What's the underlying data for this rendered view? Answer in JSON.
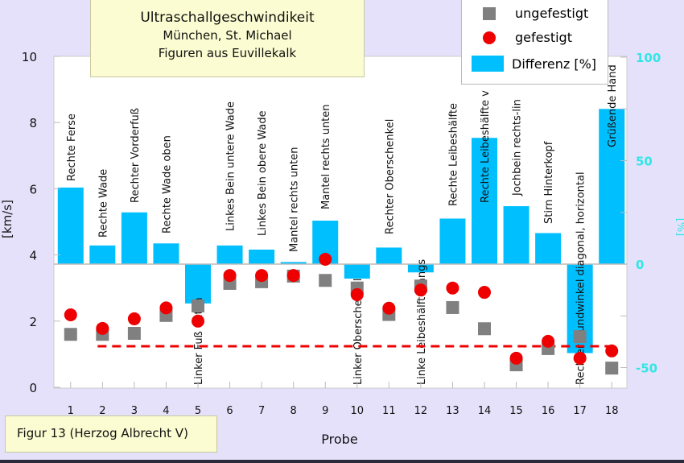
{
  "title_box": {
    "line1": "Ultraschallgeschwindikeit",
    "line2": "München, St. Michael",
    "line3": "Figuren aus Euvillekalk"
  },
  "figure_caption": "Figur 13 (Herzog Albrecht V)",
  "colors": {
    "ungefestigt": "#808080",
    "gefestigt": "#ee0000",
    "differenz": "#00bfff",
    "right_axis": "#33e5e5",
    "dashed_line": "#ee0000",
    "background": "#e6e1fa"
  },
  "chart_data": {
    "type": "bar",
    "xlabel": "Probe",
    "ylabel": "[km/s]",
    "y2label": "[%]",
    "ylim": [
      0,
      10
    ],
    "y2lim": [
      -60,
      100
    ],
    "yticks": [
      "0",
      "2",
      "4",
      "6",
      "8",
      "10"
    ],
    "y2ticks": [
      "-50",
      "0",
      "50",
      "100"
    ],
    "categories": [
      "1",
      "2",
      "3",
      "4",
      "5",
      "6",
      "7",
      "8",
      "9",
      "10",
      "11",
      "12",
      "13",
      "14",
      "15",
      "16",
      "17",
      "18"
    ],
    "bar_labels": [
      "Rechte Ferse",
      "Rechte Wade",
      "Rechter Vorderfuß",
      "Rechte Wade oben",
      "Linker Fuß unten",
      "Linkes Bein untere Wade",
      "Linkes Bein obere Wade",
      "Mantel rechts unten",
      "Mantel rechts unten",
      "Linker Oberschenkel",
      "Rechter Oberschenkel",
      "Linke Leibeshälfte längs",
      "Rechte Leibeshälfte",
      "Rechte Leibeshälfte v",
      "Jochbein rechts-lin",
      "Stirn Hinterkopf",
      "Rechter Mundwinkel diagonal, horizontal",
      "Grüßende Hand"
    ],
    "legend": {
      "position": "top-right",
      "entries": [
        "ungefestigt",
        "gefestigt",
        "Differenz [%]"
      ]
    },
    "series": [
      {
        "name": "ungefestigt",
        "type": "scatter",
        "axis": "left",
        "marker": "square",
        "values": [
          1.6,
          1.6,
          1.63,
          2.17,
          2.46,
          3.14,
          3.19,
          3.36,
          3.23,
          3.0,
          2.2,
          3.06,
          2.41,
          1.77,
          0.68,
          1.17,
          1.53,
          0.58
        ]
      },
      {
        "name": "gefestigt",
        "type": "scatter",
        "axis": "left",
        "marker": "circle",
        "values": [
          2.19,
          1.78,
          2.07,
          2.4,
          2.0,
          3.38,
          3.38,
          3.38,
          3.87,
          2.8,
          2.39,
          2.94,
          3.0,
          2.87,
          0.88,
          1.39,
          0.88,
          1.1
        ]
      },
      {
        "name": "Differenz [%]",
        "type": "bar",
        "axis": "right",
        "values": [
          37,
          9,
          25,
          10,
          -19,
          9,
          7,
          1,
          21,
          -7,
          8,
          -4,
          22,
          61,
          28,
          15,
          -43,
          75
        ]
      }
    ],
    "reference_line": {
      "axis": "left",
      "value": 1.24,
      "from_category": "2",
      "to_category": "18",
      "style": "dashed"
    }
  }
}
